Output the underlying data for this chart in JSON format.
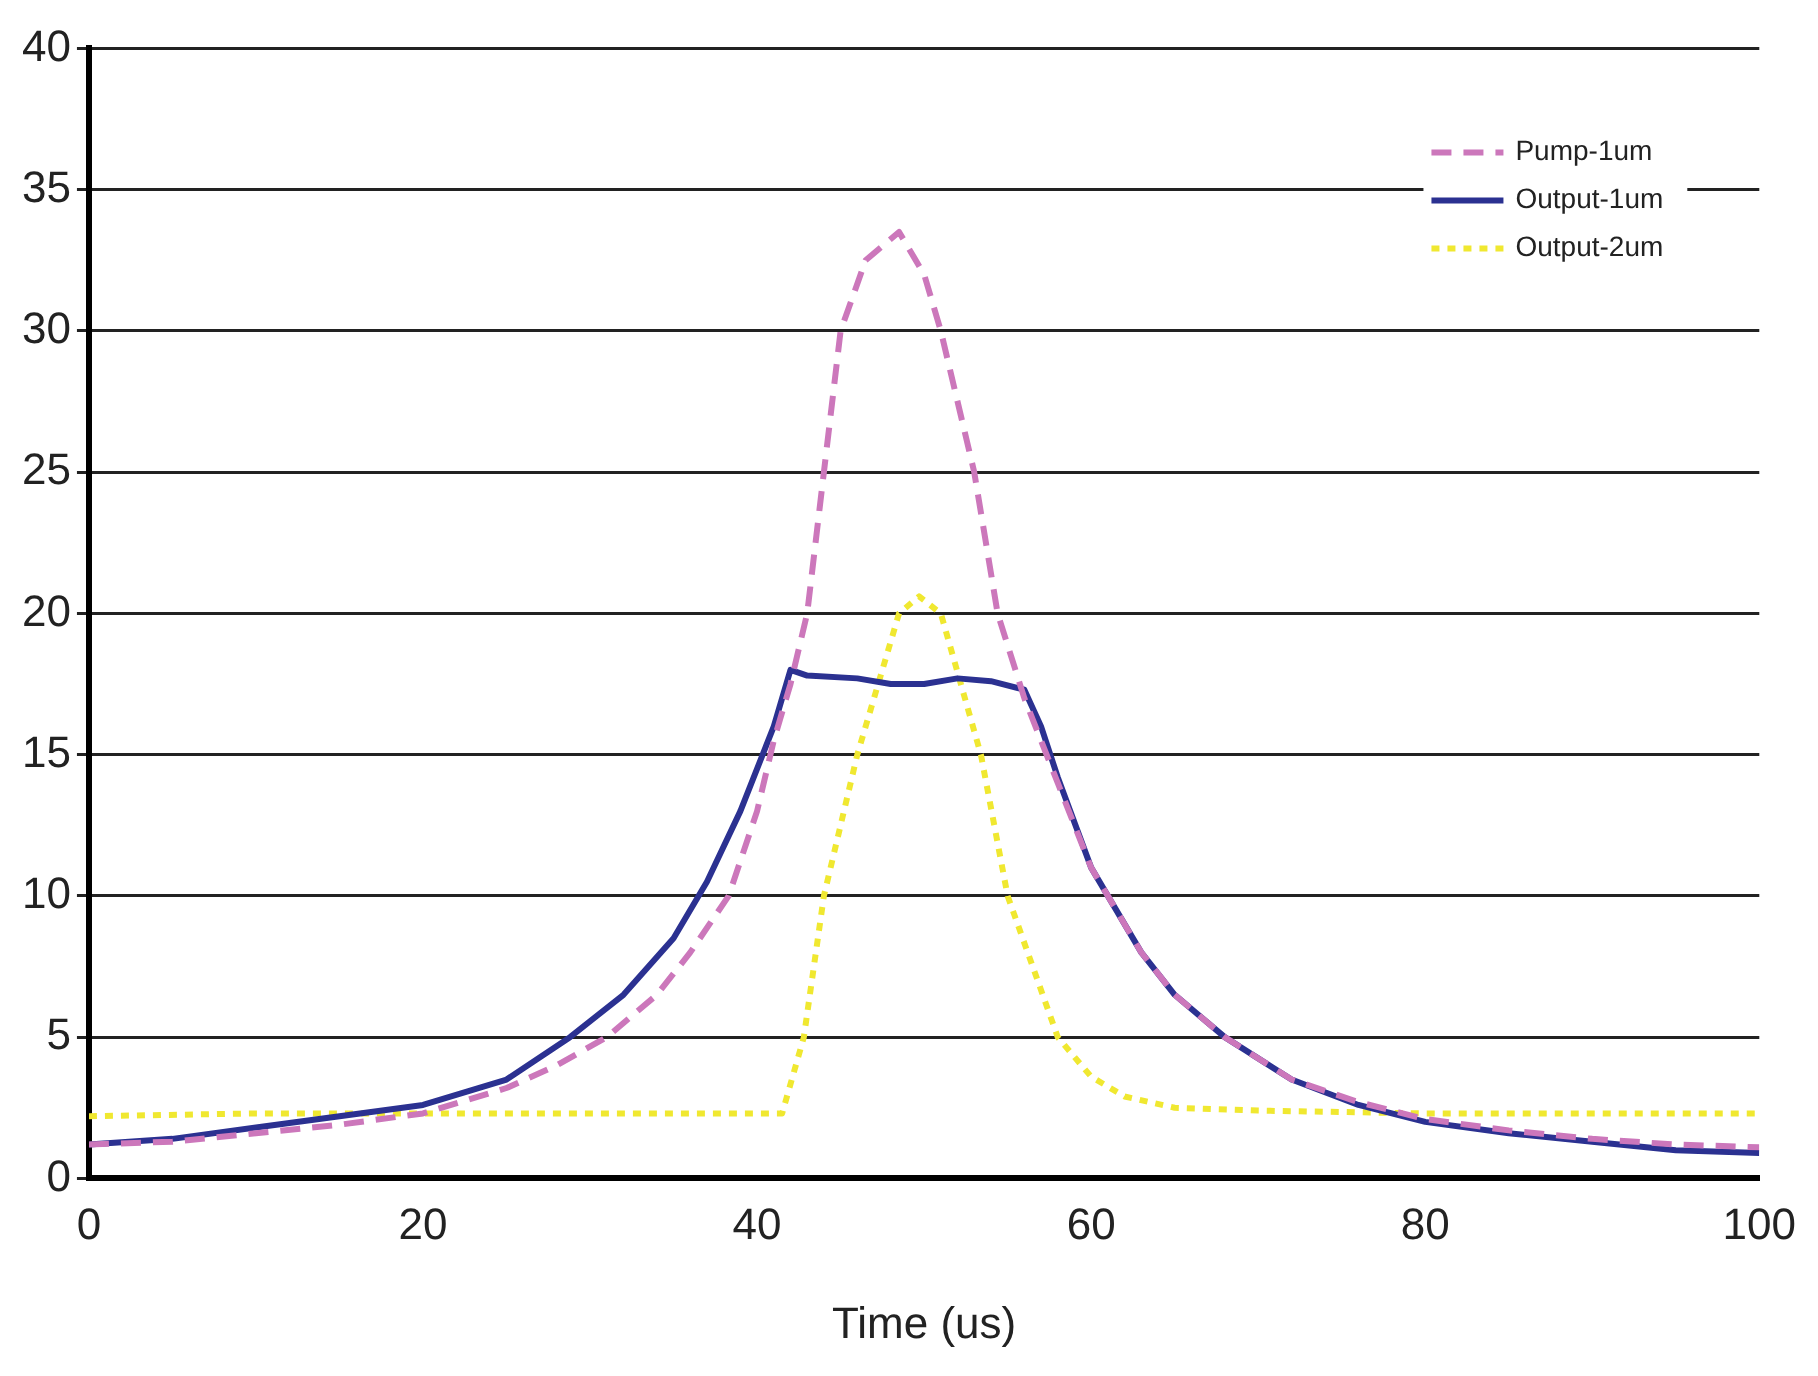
{
  "chart_data": {
    "type": "line",
    "xlabel": "Time (us)",
    "xlim": [
      0,
      100
    ],
    "xticks": [
      0,
      20,
      40,
      60,
      80,
      100
    ],
    "ylim": [
      0,
      40
    ],
    "yticks": [
      0,
      5,
      10,
      15,
      20,
      25,
      30,
      35,
      40
    ],
    "grid": "y",
    "legend": "top right",
    "marker": "none",
    "series": [
      {
        "name": "Pump-1um",
        "color": "#cc77bb",
        "line_style": "dashed",
        "x": [
          0,
          5,
          10,
          15,
          20,
          25,
          28,
          31,
          34,
          36,
          38.3,
          40,
          41,
          42,
          43,
          44,
          45,
          46.5,
          48.5,
          50,
          51,
          52,
          53,
          54.4,
          56,
          58,
          60,
          61,
          63,
          65,
          68,
          72,
          76,
          80,
          85,
          90,
          95,
          100
        ],
        "values": [
          1.2,
          1.3,
          1.6,
          1.9,
          2.3,
          3.2,
          4,
          5,
          6.5,
          8,
          10,
          13,
          15.5,
          17.5,
          20,
          25,
          30,
          32.5,
          33.5,
          32,
          30,
          27.5,
          25,
          20,
          17,
          14,
          11,
          10,
          8,
          6.5,
          5,
          3.5,
          2.7,
          2.1,
          1.7,
          1.4,
          1.2,
          1.1
        ]
      },
      {
        "name": "Output-1um",
        "color": "#2b3191",
        "line_style": "solid",
        "x": [
          0,
          5,
          10,
          15,
          20,
          25,
          28.8,
          32,
          35,
          37,
          39,
          41,
          42,
          43,
          46,
          48,
          50,
          52,
          54,
          56,
          57,
          58,
          60,
          61,
          63,
          65,
          68,
          72,
          76,
          80,
          85,
          90,
          95,
          100
        ],
        "values": [
          1.2,
          1.4,
          1.8,
          2.2,
          2.6,
          3.5,
          5,
          6.5,
          8.5,
          10.5,
          13,
          16,
          18,
          17.8,
          17.7,
          17.5,
          17.5,
          17.7,
          17.6,
          17.3,
          16,
          14.2,
          11,
          10,
          8,
          6.5,
          5,
          3.5,
          2.6,
          2,
          1.6,
          1.3,
          1,
          0.9
        ]
      },
      {
        "name": "Output-2um",
        "color": "#f0e830",
        "line_style": "dotted",
        "x": [
          0,
          10,
          20,
          30,
          41.5,
          42.8,
          44,
          46,
          48.5,
          49.7,
          51,
          53.4,
          55,
          58,
          60,
          62,
          65,
          70,
          80,
          90,
          100
        ],
        "values": [
          2.2,
          2.3,
          2.3,
          2.3,
          2.3,
          5,
          10,
          15,
          20,
          20.6,
          20,
          15,
          10,
          5,
          3.6,
          2.9,
          2.5,
          2.4,
          2.3,
          2.3,
          2.3
        ]
      }
    ]
  }
}
